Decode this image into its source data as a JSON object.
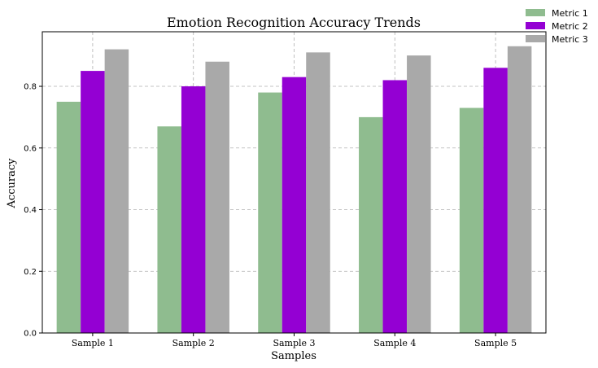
{
  "chart_data": {
    "type": "bar",
    "title": "Emotion Recognition Accuracy Trends",
    "xlabel": "Samples",
    "ylabel": "Accuracy",
    "categories": [
      "Sample 1",
      "Sample 2",
      "Sample 3",
      "Sample 4",
      "Sample 5"
    ],
    "series": [
      {
        "name": "Metric 1",
        "color": "#8fbc8f",
        "values": [
          0.75,
          0.67,
          0.78,
          0.7,
          0.73
        ]
      },
      {
        "name": "Metric 2",
        "color": "#9400d3",
        "values": [
          0.85,
          0.8,
          0.83,
          0.82,
          0.86
        ]
      },
      {
        "name": "Metric 3",
        "color": "#a9a9a9",
        "values": [
          0.92,
          0.88,
          0.91,
          0.9,
          0.93
        ]
      }
    ],
    "ylim": [
      0,
      0.977
    ],
    "yticks": [
      "0.0",
      "0.2",
      "0.4",
      "0.6",
      "0.8"
    ],
    "grid": true,
    "legend_position": "top-right"
  }
}
